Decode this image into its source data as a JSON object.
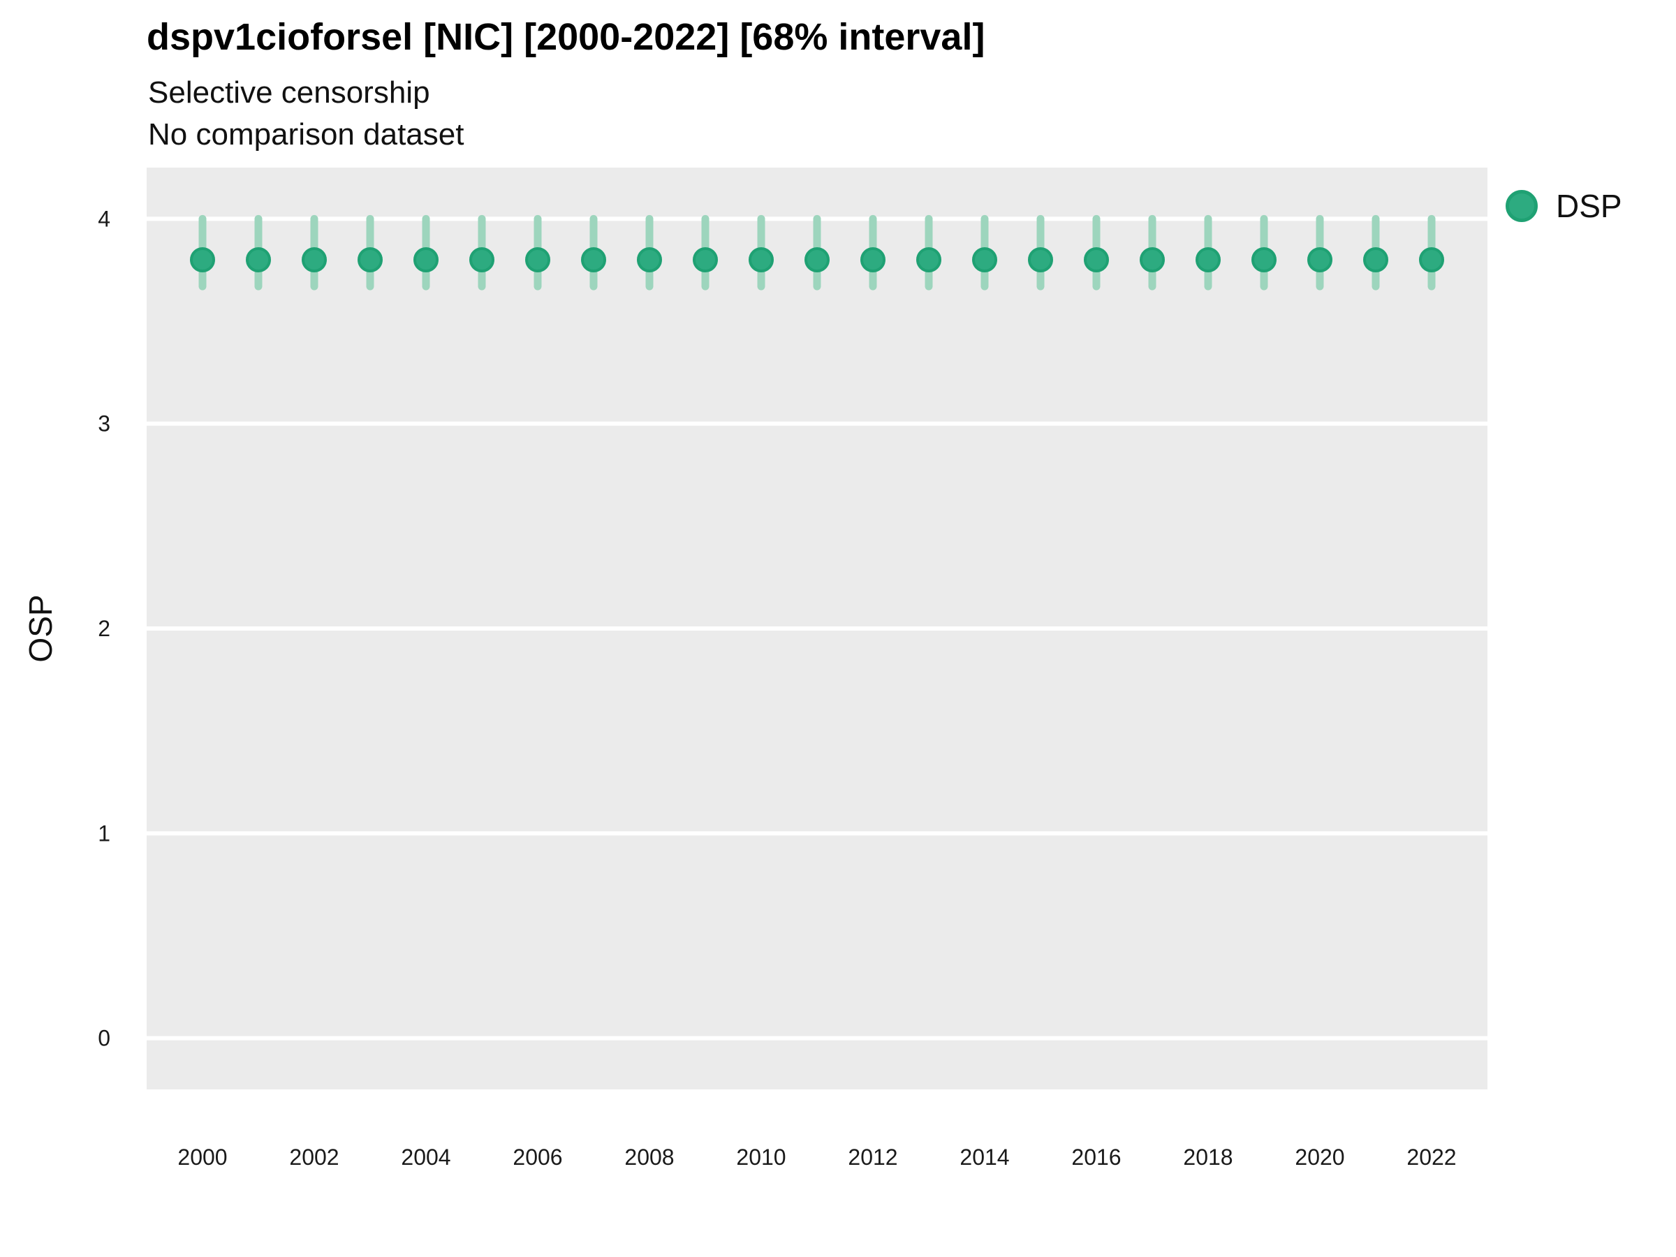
{
  "title": "dspv1cioforsel [NIC] [2000-2022] [68% interval]",
  "subtitle1": "Selective censorship",
  "subtitle2": "No comparison dataset",
  "ylabel": "OSP",
  "legend": {
    "label": "DSP"
  },
  "colors": {
    "point_fill": "#2dab80",
    "point_stroke": "#1fa173",
    "errorbar": "#9dd5bd",
    "panel_bg": "#ebebeb",
    "grid": "#ffffff",
    "tick_text": "#1a1a1a"
  },
  "chart_data": {
    "type": "scatter",
    "title": "dspv1cioforsel [NIC] [2000-2022] [68% interval]",
    "subtitle": "Selective censorship",
    "subtitle2": "No comparison dataset",
    "xlabel": "",
    "ylabel": "OSP",
    "xlim": [
      1999,
      2023
    ],
    "ylim": [
      -0.25,
      4.25
    ],
    "xticks": [
      2000,
      2002,
      2004,
      2006,
      2008,
      2010,
      2012,
      2014,
      2016,
      2018,
      2020,
      2022
    ],
    "yticks": [
      0,
      1,
      2,
      3,
      4
    ],
    "grid": "horizontal-major-only-white",
    "legend_position": "right",
    "series": [
      {
        "name": "DSP",
        "marker": "point-with-68pct-interval",
        "x": [
          2000,
          2001,
          2002,
          2003,
          2004,
          2005,
          2006,
          2007,
          2008,
          2009,
          2010,
          2011,
          2012,
          2013,
          2014,
          2015,
          2016,
          2017,
          2018,
          2019,
          2020,
          2021,
          2022
        ],
        "y": [
          3.8,
          3.8,
          3.8,
          3.8,
          3.8,
          3.8,
          3.8,
          3.8,
          3.8,
          3.8,
          3.8,
          3.8,
          3.8,
          3.8,
          3.8,
          3.8,
          3.8,
          3.8,
          3.8,
          3.8,
          3.8,
          3.8,
          3.8
        ],
        "y_low": [
          3.67,
          3.67,
          3.67,
          3.67,
          3.67,
          3.67,
          3.67,
          3.67,
          3.67,
          3.67,
          3.67,
          3.67,
          3.67,
          3.67,
          3.67,
          3.67,
          3.67,
          3.67,
          3.67,
          3.67,
          3.67,
          3.67,
          3.67
        ],
        "y_high": [
          4.0,
          4.0,
          4.0,
          4.0,
          4.0,
          4.0,
          4.0,
          4.0,
          4.0,
          4.0,
          4.0,
          4.0,
          4.0,
          4.0,
          4.0,
          4.0,
          4.0,
          4.0,
          4.0,
          4.0,
          4.0,
          4.0,
          4.0
        ]
      }
    ]
  }
}
